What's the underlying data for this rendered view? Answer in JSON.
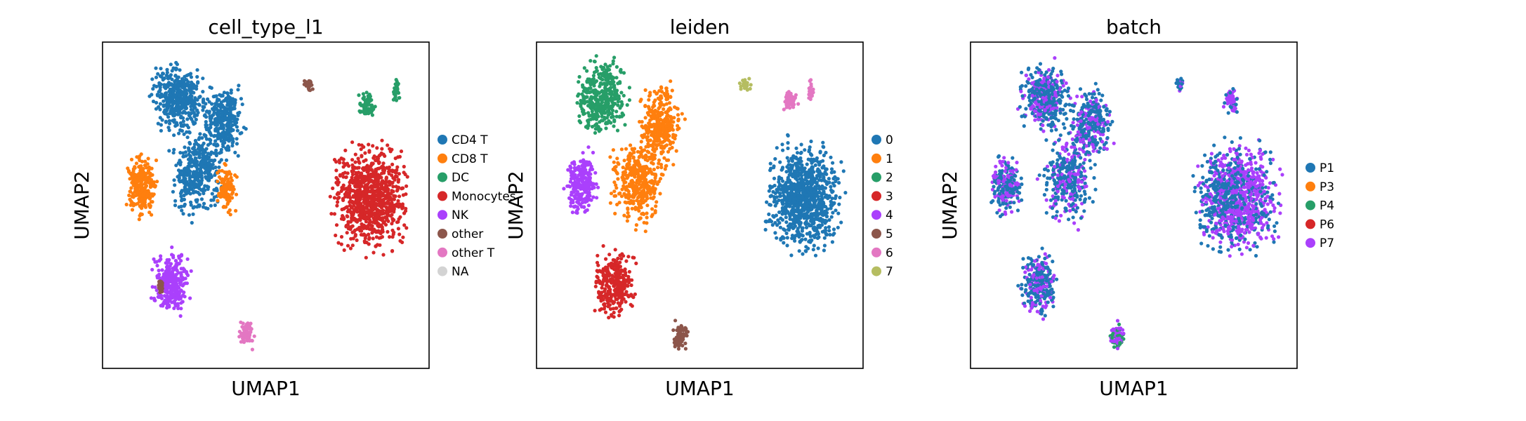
{
  "chart_data": [
    {
      "type": "scatter",
      "title": "cell_type_l1",
      "xlabel": "UMAP1",
      "ylabel": "UMAP2",
      "legend": "right",
      "categories": [
        {
          "label": "CD4 T",
          "color": "#1f77b4"
        },
        {
          "label": "CD8 T",
          "color": "#ff7f0e"
        },
        {
          "label": "DC",
          "color": "#279e68"
        },
        {
          "label": "Monocytes",
          "color": "#d62728"
        },
        {
          "label": "NK",
          "color": "#aa40fc"
        },
        {
          "label": "other",
          "color": "#8c564b"
        },
        {
          "label": "other T",
          "color": "#e377c2"
        },
        {
          "label": "NA",
          "color": "#d3d3d3"
        }
      ]
    },
    {
      "type": "scatter",
      "title": "leiden",
      "xlabel": "UMAP1",
      "ylabel": "UMAP2",
      "legend": "right",
      "categories": [
        {
          "label": "0",
          "color": "#1f77b4"
        },
        {
          "label": "1",
          "color": "#ff7f0e"
        },
        {
          "label": "2",
          "color": "#279e68"
        },
        {
          "label": "3",
          "color": "#d62728"
        },
        {
          "label": "4",
          "color": "#aa40fc"
        },
        {
          "label": "5",
          "color": "#8c564b"
        },
        {
          "label": "6",
          "color": "#e377c2"
        },
        {
          "label": "7",
          "color": "#b5bd61"
        }
      ]
    },
    {
      "type": "scatter",
      "title": "batch",
      "xlabel": "UMAP1",
      "ylabel": "UMAP2",
      "legend": "right",
      "categories": [
        {
          "label": "P1",
          "color": "#1f77b4"
        },
        {
          "label": "P3",
          "color": "#ff7f0e"
        },
        {
          "label": "P4",
          "color": "#279e68"
        },
        {
          "label": "P6",
          "color": "#d62728"
        },
        {
          "label": "P7",
          "color": "#aa40fc"
        }
      ]
    }
  ]
}
